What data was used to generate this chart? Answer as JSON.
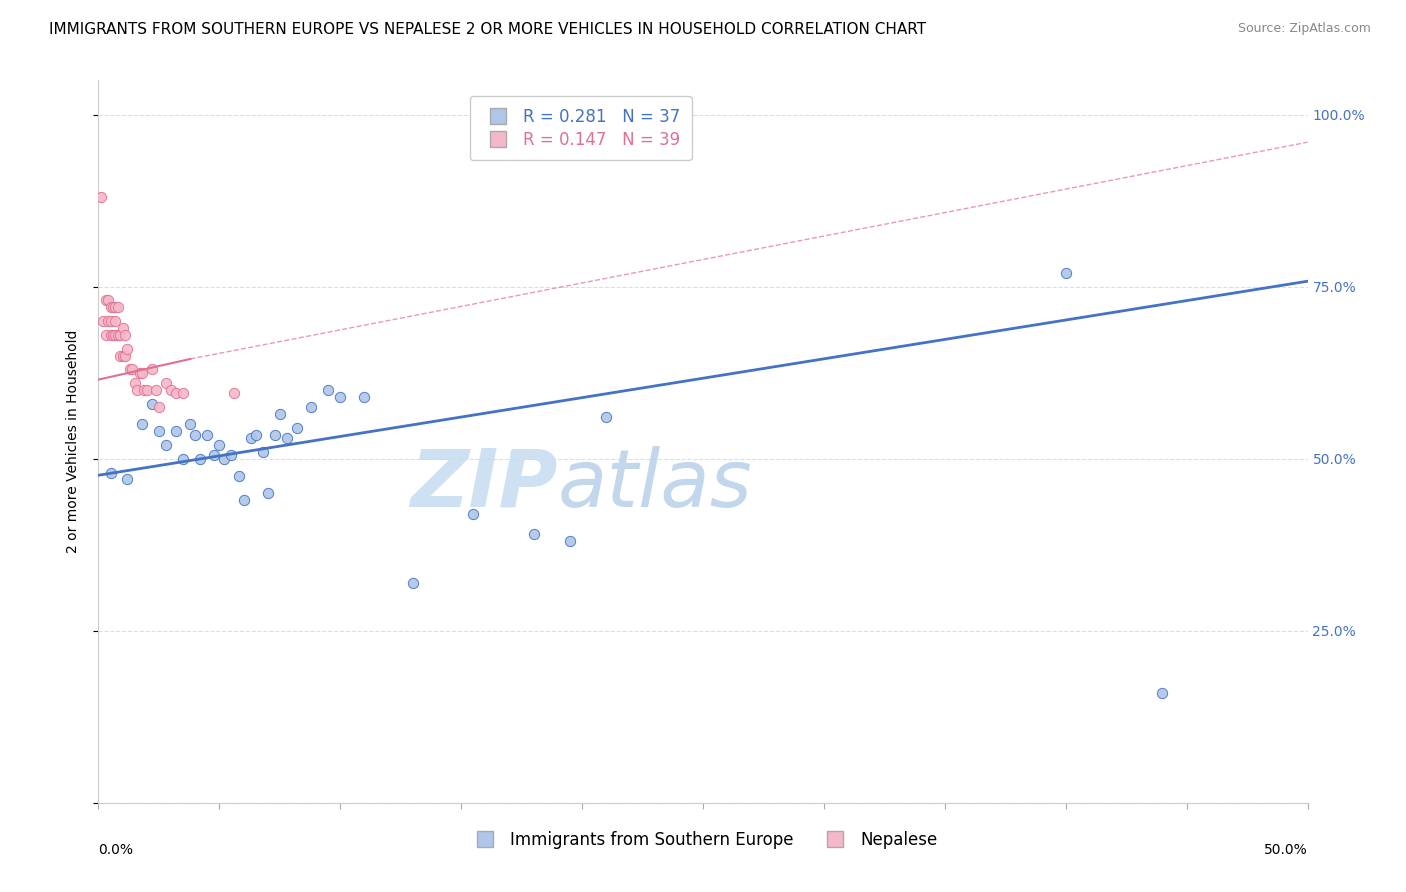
{
  "title": "IMMIGRANTS FROM SOUTHERN EUROPE VS NEPALESE 2 OR MORE VEHICLES IN HOUSEHOLD CORRELATION CHART",
  "source": "Source: ZipAtlas.com",
  "ylabel": "2 or more Vehicles in Household",
  "ytick_vals": [
    0.0,
    0.25,
    0.5,
    0.75,
    1.0
  ],
  "ytick_labels": [
    "",
    "25.0%",
    "50.0%",
    "75.0%",
    "100.0%"
  ],
  "xlim": [
    0.0,
    0.5
  ],
  "ylim": [
    0.0,
    1.05
  ],
  "xtick_label_left": "0.0%",
  "xtick_label_right": "50.0%",
  "watermark_zip": "ZIP",
  "watermark_atlas": "atlas",
  "legend_blue_r": "R = 0.281",
  "legend_blue_n": "N = 37",
  "legend_pink_r": "R = 0.147",
  "legend_pink_n": "N = 39",
  "legend_blue_label": "Immigrants from Southern Europe",
  "legend_pink_label": "Nepalese",
  "blue_scatter_x": [
    0.005,
    0.012,
    0.018,
    0.022,
    0.025,
    0.028,
    0.032,
    0.035,
    0.038,
    0.04,
    0.042,
    0.045,
    0.048,
    0.05,
    0.052,
    0.055,
    0.058,
    0.06,
    0.063,
    0.065,
    0.068,
    0.07,
    0.073,
    0.075,
    0.078,
    0.082,
    0.088,
    0.095,
    0.1,
    0.11,
    0.13,
    0.155,
    0.18,
    0.195,
    0.21,
    0.4,
    0.44
  ],
  "blue_scatter_y": [
    0.48,
    0.47,
    0.55,
    0.58,
    0.54,
    0.52,
    0.54,
    0.5,
    0.55,
    0.535,
    0.5,
    0.535,
    0.505,
    0.52,
    0.5,
    0.505,
    0.475,
    0.44,
    0.53,
    0.535,
    0.51,
    0.45,
    0.535,
    0.565,
    0.53,
    0.545,
    0.575,
    0.6,
    0.59,
    0.59,
    0.32,
    0.42,
    0.39,
    0.38,
    0.56,
    0.77,
    0.16
  ],
  "pink_scatter_x": [
    0.001,
    0.002,
    0.003,
    0.003,
    0.004,
    0.004,
    0.005,
    0.005,
    0.005,
    0.006,
    0.006,
    0.007,
    0.007,
    0.007,
    0.008,
    0.008,
    0.009,
    0.009,
    0.01,
    0.01,
    0.011,
    0.011,
    0.012,
    0.013,
    0.014,
    0.015,
    0.016,
    0.017,
    0.018,
    0.019,
    0.02,
    0.022,
    0.024,
    0.025,
    0.028,
    0.03,
    0.032,
    0.035,
    0.056
  ],
  "pink_scatter_y": [
    0.88,
    0.7,
    0.73,
    0.68,
    0.73,
    0.7,
    0.72,
    0.7,
    0.68,
    0.72,
    0.68,
    0.72,
    0.7,
    0.68,
    0.72,
    0.68,
    0.68,
    0.65,
    0.69,
    0.65,
    0.68,
    0.65,
    0.66,
    0.63,
    0.63,
    0.61,
    0.6,
    0.625,
    0.625,
    0.6,
    0.6,
    0.63,
    0.6,
    0.575,
    0.61,
    0.6,
    0.595,
    0.595,
    0.595
  ],
  "blue_line_x": [
    0.0,
    0.5
  ],
  "blue_line_y": [
    0.476,
    0.758
  ],
  "pink_solid_line_x": [
    0.0,
    0.038
  ],
  "pink_solid_line_y": [
    0.615,
    0.645
  ],
  "pink_dashed_line_x": [
    0.038,
    0.5
  ],
  "pink_dashed_line_y": [
    0.645,
    0.96
  ],
  "blue_color": "#aec6e8",
  "blue_line_color": "#4472c4",
  "pink_color": "#f5b8c8",
  "pink_line_color": "#e07090",
  "scatter_size": 55,
  "title_fontsize": 11,
  "axis_label_fontsize": 10,
  "tick_fontsize": 10,
  "legend_fontsize": 12
}
